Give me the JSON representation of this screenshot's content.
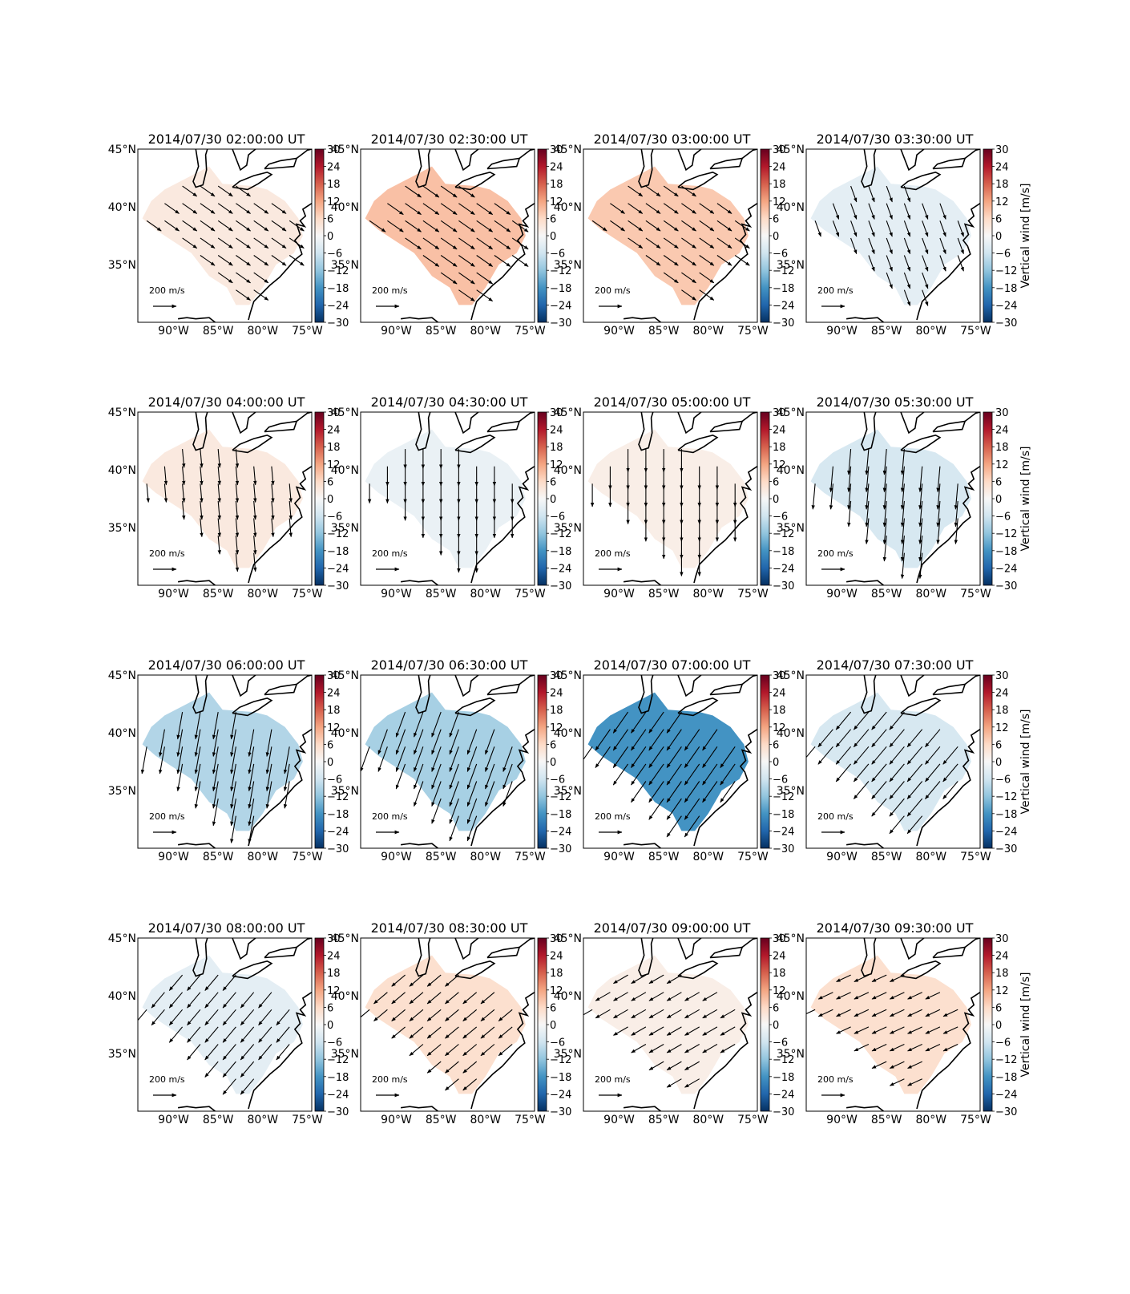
{
  "figure": {
    "colorbar_label": "Vertical wind [m/s]",
    "reference_arrow_label": "200 m/s",
    "cmap": [
      "#053061",
      "#2166ac",
      "#4393c3",
      "#92c5de",
      "#d1e5f0",
      "#f7f7f7",
      "#fddbc7",
      "#f4a582",
      "#d6604d",
      "#b2182b",
      "#67001f"
    ],
    "colorbar_ticks": [
      "30",
      "24",
      "18",
      "12",
      "6",
      "0",
      "−6",
      "−12",
      "−18",
      "−24",
      "−30"
    ],
    "lat_ticks": [
      "45°N",
      "40°N",
      "35°N"
    ],
    "lon_ticks": [
      "90°W",
      "85°W",
      "80°W",
      "75°W"
    ]
  },
  "chart_data": [
    {
      "type": "heatmap",
      "title": "2014/07/30 02:00:00 UT",
      "vertical_wind": 3,
      "vector_dir_deg": -35,
      "vector_len": 0.55,
      "xlim": [
        -94,
        -74.5
      ],
      "ylim": [
        30,
        45
      ],
      "cbar_range": [
        -30,
        30
      ]
    },
    {
      "type": "heatmap",
      "title": "2014/07/30 02:30:00 UT",
      "vertical_wind": 9,
      "vector_dir_deg": -35,
      "vector_len": 0.65,
      "xlim": [
        -94,
        -74.5
      ],
      "ylim": [
        30,
        45
      ],
      "cbar_range": [
        -30,
        30
      ]
    },
    {
      "type": "heatmap",
      "title": "2014/07/30 03:00:00 UT",
      "vertical_wind": 8,
      "vector_dir_deg": -35,
      "vector_len": 0.55,
      "xlim": [
        -94,
        -74.5
      ],
      "ylim": [
        30,
        45
      ],
      "cbar_range": [
        -30,
        30
      ]
    },
    {
      "type": "heatmap",
      "title": "2014/07/30 03:30:00 UT",
      "vertical_wind": -3,
      "vector_dir_deg": -70,
      "vector_len": 0.5,
      "xlim": [
        -94,
        -74.5
      ],
      "ylim": [
        30,
        45
      ],
      "cbar_range": [
        -30,
        30
      ]
    },
    {
      "type": "heatmap",
      "title": "2014/07/30 04:00:00 UT",
      "vertical_wind": 3,
      "vector_dir_deg": -85,
      "vector_len": 0.6,
      "xlim": [
        -94,
        -74.5
      ],
      "ylim": [
        30,
        45
      ],
      "cbar_range": [
        -30,
        30
      ]
    },
    {
      "type": "heatmap",
      "title": "2014/07/30 04:30:00 UT",
      "vertical_wind": -2,
      "vector_dir_deg": -90,
      "vector_len": 0.65,
      "xlim": [
        -94,
        -74.5
      ],
      "ylim": [
        30,
        45
      ],
      "cbar_range": [
        -30,
        30
      ]
    },
    {
      "type": "heatmap",
      "title": "2014/07/30 05:00:00 UT",
      "vertical_wind": 2,
      "vector_dir_deg": -90,
      "vector_len": 0.85,
      "xlim": [
        -94,
        -74.5
      ],
      "ylim": [
        30,
        45
      ],
      "cbar_range": [
        -30,
        30
      ]
    },
    {
      "type": "heatmap",
      "title": "2014/07/30 05:30:00 UT",
      "vertical_wind": -5,
      "vector_dir_deg": -95,
      "vector_len": 1.0,
      "xlim": [
        -94,
        -74.5
      ],
      "ylim": [
        30,
        45
      ],
      "cbar_range": [
        -30,
        30
      ]
    },
    {
      "type": "heatmap",
      "title": "2014/07/30 06:00:00 UT",
      "vertical_wind": -9,
      "vector_dir_deg": -100,
      "vector_len": 1.1,
      "xlim": [
        -94,
        -74.5
      ],
      "ylim": [
        30,
        45
      ],
      "cbar_range": [
        -30,
        30
      ]
    },
    {
      "type": "heatmap",
      "title": "2014/07/30 06:30:00 UT",
      "vertical_wind": -10,
      "vector_dir_deg": -110,
      "vector_len": 1.05,
      "xlim": [
        -94,
        -74.5
      ],
      "ylim": [
        30,
        45
      ],
      "cbar_range": [
        -30,
        30
      ]
    },
    {
      "type": "heatmap",
      "title": "2014/07/30 07:00:00 UT",
      "vertical_wind": -18,
      "vector_dir_deg": -125,
      "vector_len": 1.0,
      "xlim": [
        -94,
        -74.5
      ],
      "ylim": [
        30,
        45
      ],
      "cbar_range": [
        -30,
        30
      ]
    },
    {
      "type": "heatmap",
      "title": "2014/07/30 07:30:00 UT",
      "vertical_wind": -5,
      "vector_dir_deg": -130,
      "vector_len": 0.85,
      "xlim": [
        -94,
        -74.5
      ],
      "ylim": [
        30,
        45
      ],
      "cbar_range": [
        -30,
        30
      ]
    },
    {
      "type": "heatmap",
      "title": "2014/07/30 08:00:00 UT",
      "vertical_wind": -3,
      "vector_dir_deg": -130,
      "vector_len": 0.7,
      "xlim": [
        -94,
        -74.5
      ],
      "ylim": [
        30,
        45
      ],
      "cbar_range": [
        -30,
        30
      ]
    },
    {
      "type": "heatmap",
      "title": "2014/07/30 08:30:00 UT",
      "vertical_wind": 5,
      "vector_dir_deg": -140,
      "vector_len": 0.55,
      "xlim": [
        -94,
        -74.5
      ],
      "ylim": [
        30,
        45
      ],
      "cbar_range": [
        -30,
        30
      ]
    },
    {
      "type": "heatmap",
      "title": "2014/07/30 09:00:00 UT",
      "vertical_wind": 2,
      "vector_dir_deg": -150,
      "vector_len": 0.5,
      "xlim": [
        -94,
        -74.5
      ],
      "ylim": [
        30,
        45
      ],
      "cbar_range": [
        -30,
        30
      ]
    },
    {
      "type": "heatmap",
      "title": "2014/07/30 09:30:00 UT",
      "vertical_wind": 5,
      "vector_dir_deg": -155,
      "vector_len": 0.45,
      "xlim": [
        -94,
        -74.5
      ],
      "ylim": [
        30,
        45
      ],
      "cbar_range": [
        -30,
        30
      ]
    }
  ]
}
